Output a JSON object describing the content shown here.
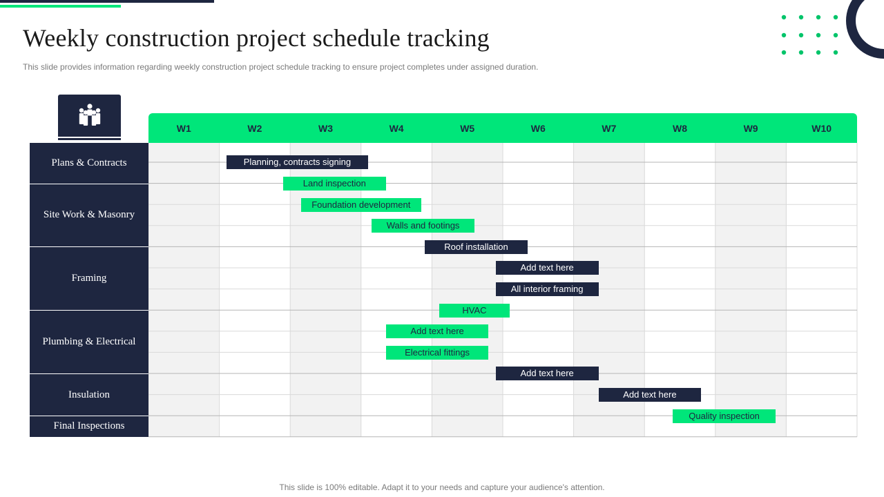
{
  "slide": {
    "title": "Weekly construction project schedule tracking",
    "subtitle": "This slide provides information regarding weekly construction project schedule tracking to ensure project completes under assigned duration.",
    "footer": "This slide is 100% editable. Adapt it to your needs and capture your audience's attention."
  },
  "colors": {
    "navy": "#1e2640",
    "green": "#00e67a",
    "shade": "#f2f2f2",
    "line": "#d9d9d9"
  },
  "icon": "team-people-icon",
  "chart_data": {
    "type": "gantt",
    "weeks": [
      "W1",
      "W2",
      "W3",
      "W4",
      "W5",
      "W6",
      "W7",
      "W8",
      "W9",
      "W10"
    ],
    "categories": [
      {
        "name": "Plans & Contracts",
        "rows": 1
      },
      {
        "name": "Site Work & Masonry",
        "rows": 3
      },
      {
        "name": "Framing",
        "rows": 3
      },
      {
        "name": "Plumbing & Electrical",
        "rows": 3
      },
      {
        "name": "Insulation",
        "rows": 2
      },
      {
        "name": "Final Inspections",
        "rows": 1
      }
    ],
    "tasks": [
      {
        "label": "Planning, contracts signing",
        "row": 0,
        "start": 1.1,
        "end": 3.1,
        "color": "navy"
      },
      {
        "label": "Land inspection",
        "row": 1,
        "start": 1.9,
        "end": 3.35,
        "color": "green"
      },
      {
        "label": "Foundation development",
        "row": 2,
        "start": 2.15,
        "end": 3.85,
        "color": "green"
      },
      {
        "label": "Walls and footings",
        "row": 3,
        "start": 3.15,
        "end": 4.6,
        "color": "green"
      },
      {
        "label": "Roof installation",
        "row": 4,
        "start": 3.9,
        "end": 5.35,
        "color": "navy"
      },
      {
        "label": "Add text here",
        "row": 5,
        "start": 4.9,
        "end": 6.35,
        "color": "navy"
      },
      {
        "label": "All interior framing",
        "row": 6,
        "start": 4.9,
        "end": 6.35,
        "color": "navy"
      },
      {
        "label": "HVAC",
        "row": 7,
        "start": 4.1,
        "end": 5.1,
        "color": "green"
      },
      {
        "label": "Add text here",
        "row": 8,
        "start": 3.35,
        "end": 4.8,
        "color": "green"
      },
      {
        "label": "Electrical fittings",
        "row": 9,
        "start": 3.35,
        "end": 4.8,
        "color": "green"
      },
      {
        "label": "Add text here",
        "row": 10,
        "start": 4.9,
        "end": 6.35,
        "color": "navy"
      },
      {
        "label": "Add text here",
        "row": 11,
        "start": 6.35,
        "end": 7.8,
        "color": "navy"
      },
      {
        "label": "Quality inspection",
        "row": 12,
        "start": 7.4,
        "end": 8.85,
        "color": "green"
      }
    ]
  }
}
